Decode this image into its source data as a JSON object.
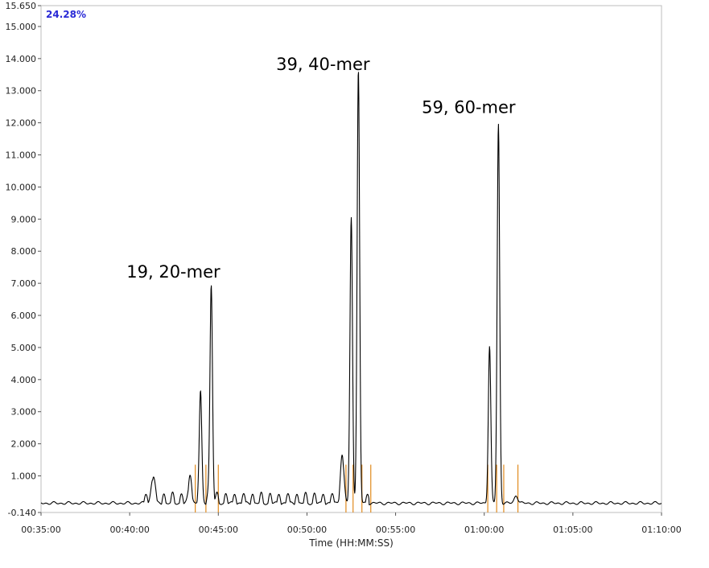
{
  "chart_data": {
    "type": "line",
    "title": "",
    "xlabel": "Time (HH:MM:SS)",
    "ylabel": "",
    "xlim_min": [
      35,
      70
    ],
    "ylim": [
      -0.14,
      15.65
    ],
    "y_ticks": [
      -0.14,
      1,
      2,
      3,
      4,
      5,
      6,
      7,
      8,
      9,
      10,
      11,
      12,
      13,
      14,
      15,
      15.65
    ],
    "y_tick_labels": [
      "-0.140",
      "1.000",
      "2.000",
      "3.000",
      "4.000",
      "5.000",
      "6.000",
      "7.000",
      "8.000",
      "9.000",
      "10.000",
      "11.000",
      "12.000",
      "13.000",
      "14.000",
      "15.000",
      "15.650"
    ],
    "x_ticks_min": [
      35,
      40,
      45,
      50,
      55,
      60,
      65,
      70
    ],
    "x_tick_labels": [
      "00:35:00",
      "00:40:00",
      "00:45:00",
      "00:50:00",
      "00:55:00",
      "01:00:00",
      "01:05:00",
      "01:10:00"
    ],
    "corner_label": "24.28%",
    "annotations": [
      {
        "text": "19, 20-mer",
        "x": 44.6,
        "y": 6.8
      },
      {
        "text": "39, 40-mer",
        "x": 52.9,
        "y": 13.2
      },
      {
        "text": "59, 60-mer",
        "x": 60.8,
        "y": 11.8
      }
    ],
    "series": [
      {
        "color": "#000000",
        "baseline": 0.15,
        "noise_amplitude": 0.05,
        "ripple": {
          "start_min": 40.8,
          "end_min": 53.5,
          "period_min": 0.5,
          "amplitude": 0.3
        },
        "peaks": [
          {
            "x": 41.3,
            "y": 0.75
          },
          {
            "x": 43.4,
            "y": 0.6
          },
          {
            "x": 44.0,
            "y": 3.3
          },
          {
            "x": 44.6,
            "y": 6.8
          },
          {
            "x": 52.0,
            "y": 1.3
          },
          {
            "x": 52.5,
            "y": 8.7
          },
          {
            "x": 52.9,
            "y": 13.2
          },
          {
            "x": 60.3,
            "y": 4.9
          },
          {
            "x": 60.8,
            "y": 11.8
          },
          {
            "x": 61.8,
            "y": 0.25
          }
        ]
      }
    ],
    "markers": {
      "color": "#e08a1e",
      "y_top": 1.35,
      "x": [
        43.7,
        44.3,
        45.0,
        52.2,
        52.6,
        53.1,
        53.6,
        60.2,
        60.7,
        61.1,
        61.9
      ]
    }
  }
}
